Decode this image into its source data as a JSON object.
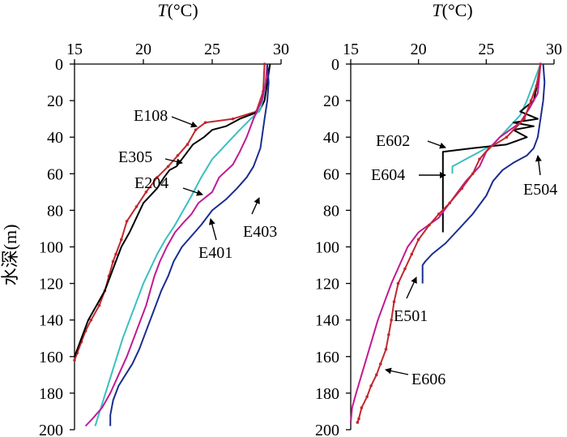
{
  "chart_data": [
    {
      "type": "line",
      "xlabel": "T(°C)",
      "ylabel": "水深(m)",
      "xlim": [
        15,
        30
      ],
      "ylim": [
        0,
        200
      ],
      "y_inverted": true,
      "x_axis_position": "top",
      "xticks": [
        15,
        20,
        25,
        30
      ],
      "yticks": [
        0,
        20,
        40,
        60,
        80,
        100,
        120,
        140,
        160,
        180,
        200
      ],
      "series": [
        {
          "name": "E108",
          "color": "#c0282d",
          "x": [
            28.8,
            28.7,
            28.2,
            26.5,
            24.5,
            23.8,
            23.2,
            22.5,
            21.8,
            21.0,
            20.2,
            19.5,
            18.8,
            18.4,
            18.0,
            17.8,
            17.5,
            17.2,
            16.8,
            16.2,
            15.8,
            15.5,
            15.2,
            15.0
          ],
          "y": [
            0,
            15,
            26,
            30,
            32,
            36,
            44,
            50,
            56,
            62,
            70,
            78,
            86,
            96,
            104,
            108,
            116,
            124,
            132,
            140,
            146,
            152,
            158,
            162
          ]
        },
        {
          "name": "E305",
          "color": "#000000",
          "x": [
            29.2,
            29.0,
            28.8,
            28.4,
            27.0,
            26.0,
            25.0,
            24.4,
            23.6,
            23.0,
            22.4,
            21.9,
            21.5,
            21.0,
            20.0,
            19.5,
            19.0,
            18.4,
            18.0,
            17.6,
            17.2,
            16.6,
            16.0,
            15.5,
            15.0
          ],
          "y": [
            0,
            10,
            20,
            26,
            30,
            34,
            36,
            40,
            44,
            50,
            56,
            58,
            62,
            68,
            76,
            84,
            92,
            100,
            108,
            116,
            124,
            132,
            140,
            150,
            160
          ]
        },
        {
          "name": "E204",
          "color": "#3bbfbf",
          "x": [
            29.0,
            28.8,
            28.5,
            27.8,
            27.0,
            26.0,
            25.0,
            24.2,
            23.5,
            22.9,
            22.3,
            21.6,
            21.0,
            20.5,
            20.0,
            19.5,
            19.0,
            18.5,
            18.0,
            17.5,
            17.0,
            16.5
          ],
          "y": [
            0,
            15,
            25,
            30,
            36,
            44,
            52,
            62,
            72,
            80,
            88,
            96,
            104,
            112,
            120,
            130,
            140,
            150,
            162,
            174,
            186,
            198
          ]
        },
        {
          "name": "E401",
          "color": "#c21893",
          "x": [
            29.0,
            28.9,
            28.6,
            28.0,
            27.5,
            27.0,
            26.5,
            25.5,
            25.0,
            24.0,
            23.5,
            23.0,
            22.3,
            21.7,
            21.2,
            20.8,
            20.5,
            20.2,
            19.8,
            19.3,
            18.8,
            18.2,
            17.6,
            17.0,
            16.3,
            15.8
          ],
          "y": [
            0,
            10,
            20,
            30,
            40,
            48,
            55,
            62,
            70,
            76,
            82,
            86,
            92,
            100,
            108,
            116,
            124,
            132,
            140,
            150,
            160,
            170,
            180,
            188,
            194,
            198
          ]
        },
        {
          "name": "E403",
          "color": "#1a2d8f",
          "x": [
            29.0,
            29.1,
            29.0,
            28.8,
            28.5,
            28.0,
            27.5,
            26.8,
            26.0,
            25.0,
            24.2,
            23.5,
            22.8,
            22.2,
            21.8,
            21.3,
            20.9,
            20.5,
            20.1,
            19.7,
            19.2,
            18.7,
            18.2,
            17.8,
            17.6,
            17.6
          ],
          "y": [
            0,
            10,
            20,
            30,
            46,
            56,
            62,
            68,
            74,
            80,
            88,
            94,
            100,
            108,
            116,
            124,
            132,
            140,
            148,
            156,
            164,
            170,
            176,
            184,
            192,
            198
          ]
        }
      ],
      "annotations": [
        "E108",
        "E305",
        "E204",
        "E401",
        "E403"
      ]
    },
    {
      "type": "line",
      "xlabel": "T(°C)",
      "ylabel": "",
      "xlim": [
        15,
        30
      ],
      "ylim": [
        0,
        200
      ],
      "y_inverted": true,
      "x_axis_position": "top",
      "xticks": [
        15,
        20,
        25,
        30
      ],
      "yticks": [
        0,
        20,
        40,
        60,
        80,
        100,
        120,
        140,
        160,
        180,
        200
      ],
      "series": [
        {
          "name": "E504",
          "color": "#1a2d8f",
          "x": [
            29.2,
            29.3,
            29.2,
            29.0,
            28.8,
            28.5,
            28.0,
            27.0,
            26.2,
            25.5,
            25.0,
            24.0,
            23.0,
            22.0,
            21.0,
            20.5,
            20.3,
            20.3
          ],
          "y": [
            0,
            10,
            20,
            30,
            40,
            46,
            50,
            54,
            58,
            64,
            72,
            82,
            90,
            98,
            104,
            108,
            110,
            120
          ]
        },
        {
          "name": "E602",
          "color": "#3bbfbf",
          "x": [
            29.0,
            28.0,
            27.5,
            26.5,
            25.5,
            24.5,
            23.5,
            23.0,
            22.5,
            22.5
          ],
          "y": [
            0,
            20,
            28,
            36,
            44,
            48,
            52,
            54,
            56,
            60
          ]
        },
        {
          "name": "E604",
          "color": "#000000",
          "x": [
            29.0,
            28.8,
            28.5,
            27.5,
            28.8,
            27.0,
            28.5,
            27.0,
            28.0,
            26.5,
            24.0,
            21.8,
            21.8,
            21.8,
            21.8
          ],
          "y": [
            0,
            10,
            20,
            26,
            30,
            32,
            34,
            36,
            40,
            44,
            46,
            48,
            60,
            80,
            92
          ]
        },
        {
          "name": "E501",
          "color": "#c21893",
          "x": [
            29.0,
            28.8,
            28.2,
            27.5,
            26.0,
            25.0,
            24.5,
            23.5,
            22.5,
            21.5,
            20.0,
            19.2,
            18.6,
            18.0,
            17.5,
            17.0,
            16.6,
            16.2,
            15.8,
            15.4,
            15.1,
            15.0
          ],
          "y": [
            0,
            16,
            24,
            32,
            40,
            48,
            56,
            64,
            74,
            84,
            92,
            100,
            110,
            120,
            130,
            140,
            150,
            160,
            170,
            180,
            188,
            196
          ]
        },
        {
          "name": "E606",
          "color": "#c0282d",
          "x": [
            29.0,
            28.7,
            28.3,
            27.8,
            26.5,
            25.2,
            24.5,
            24.0,
            23.2,
            22.3,
            21.5,
            20.8,
            20.0,
            19.5,
            19.0,
            18.5,
            18.2,
            18.0,
            17.8,
            17.6,
            17.2,
            16.9,
            16.5,
            16.2,
            15.8,
            15.6,
            15.5
          ],
          "y": [
            0,
            12,
            20,
            30,
            40,
            46,
            52,
            60,
            68,
            76,
            82,
            88,
            96,
            104,
            112,
            120,
            130,
            140,
            148,
            156,
            164,
            170,
            176,
            182,
            188,
            194,
            196
          ]
        }
      ],
      "annotations": [
        "E602",
        "E604",
        "E504",
        "E501",
        "E606"
      ]
    }
  ]
}
